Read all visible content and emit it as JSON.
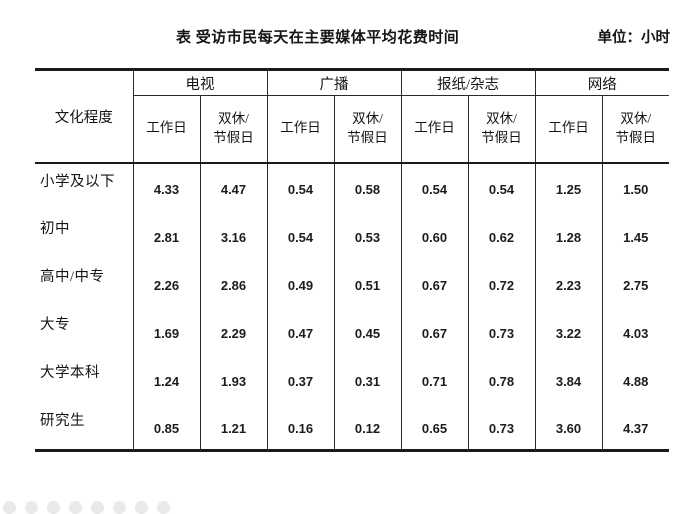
{
  "page": {
    "title": "表 受访市民每天在主要媒体平均花费时间",
    "unit_label": "单位：小时"
  },
  "table": {
    "corner_header": "文化程度",
    "column_groups": [
      "电视",
      "广播",
      "报纸/杂志",
      "网络"
    ],
    "sub_columns": [
      "工作日",
      "双休/\n节假日"
    ],
    "rows": [
      {
        "label": "小学及以下",
        "values": [
          "4.33",
          "4.47",
          "0.54",
          "0.58",
          "0.54",
          "0.54",
          "1.25",
          "1.50"
        ]
      },
      {
        "label": "初中",
        "values": [
          "2.81",
          "3.16",
          "0.54",
          "0.53",
          "0.60",
          "0.62",
          "1.28",
          "1.45"
        ]
      },
      {
        "label": "高中/中专",
        "values": [
          "2.26",
          "2.86",
          "0.49",
          "0.51",
          "0.67",
          "0.72",
          "2.23",
          "2.75"
        ]
      },
      {
        "label": "大专",
        "values": [
          "1.69",
          "2.29",
          "0.47",
          "0.45",
          "0.67",
          "0.73",
          "3.22",
          "4.03"
        ]
      },
      {
        "label": "大学本科",
        "values": [
          "1.24",
          "1.93",
          "0.37",
          "0.31",
          "0.71",
          "0.78",
          "3.84",
          "4.88"
        ]
      },
      {
        "label": "研究生",
        "values": [
          "0.85",
          "1.21",
          "0.16",
          "0.12",
          "0.65",
          "0.73",
          "3.60",
          "4.37"
        ]
      }
    ]
  },
  "decor": {
    "bottom_dots_icon": "faded-dot-row",
    "bottom_dots_count": 8,
    "dot_color": "#e9e9e9"
  },
  "colors": {
    "background": "#ffffff",
    "text": "#151515",
    "border": "#2a2a2a"
  }
}
